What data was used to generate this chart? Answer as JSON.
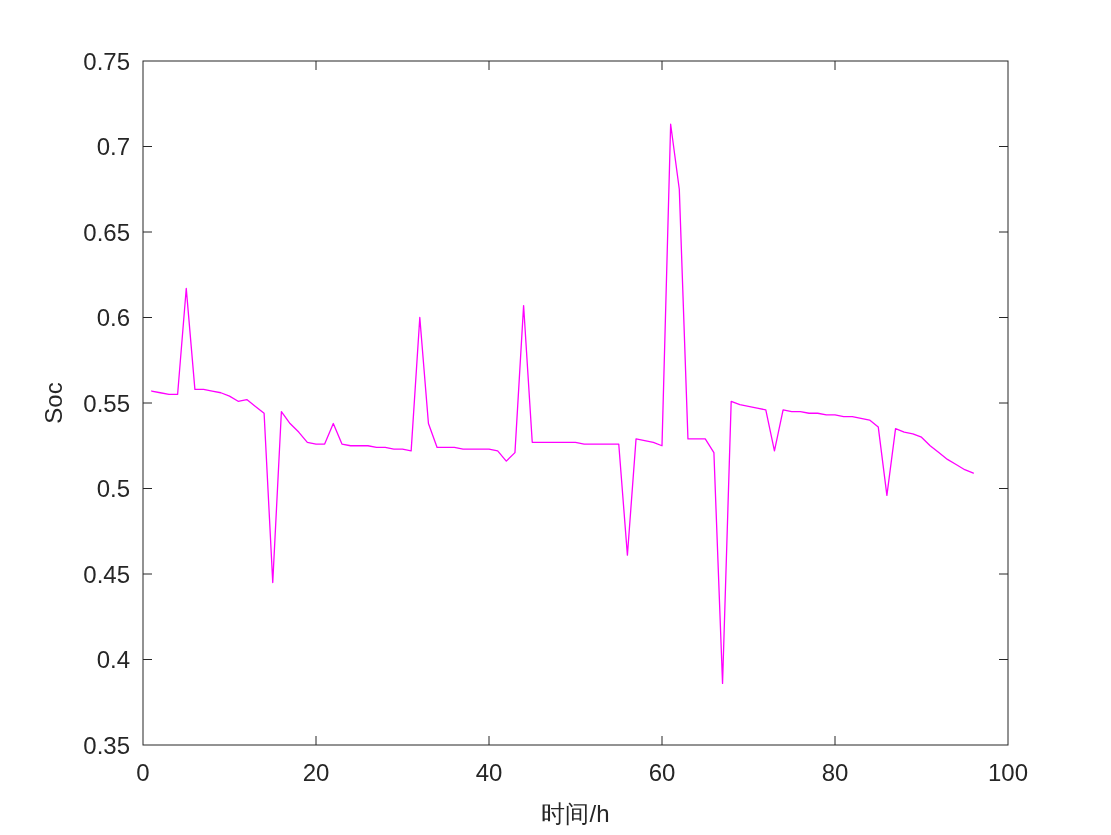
{
  "chart_data": {
    "type": "line",
    "xlabel": "时间/h",
    "ylabel": "Soc",
    "color": "#ff00ff",
    "x": [
      1,
      2,
      3,
      4,
      5,
      6,
      7,
      8,
      9,
      10,
      11,
      12,
      13,
      14,
      15,
      16,
      17,
      18,
      19,
      20,
      21,
      22,
      23,
      24,
      25,
      26,
      27,
      28,
      29,
      30,
      31,
      32,
      33,
      34,
      35,
      36,
      37,
      38,
      39,
      40,
      41,
      42,
      43,
      44,
      45,
      46,
      47,
      48,
      49,
      50,
      51,
      52,
      53,
      54,
      55,
      56,
      57,
      58,
      59,
      60,
      61,
      62,
      63,
      64,
      65,
      66,
      67,
      68,
      69,
      70,
      71,
      72,
      73,
      74,
      75,
      76,
      77,
      78,
      79,
      80,
      81,
      82,
      83,
      84,
      85,
      86,
      87,
      88,
      89,
      90,
      91,
      92,
      93,
      94,
      95,
      96
    ],
    "values": [
      0.557,
      0.556,
      0.555,
      0.555,
      0.617,
      0.558,
      0.558,
      0.557,
      0.556,
      0.554,
      0.551,
      0.552,
      0.548,
      0.544,
      0.445,
      0.545,
      0.538,
      0.533,
      0.527,
      0.526,
      0.526,
      0.538,
      0.526,
      0.525,
      0.525,
      0.525,
      0.524,
      0.524,
      0.523,
      0.523,
      0.522,
      0.6,
      0.538,
      0.524,
      0.524,
      0.524,
      0.523,
      0.523,
      0.523,
      0.523,
      0.522,
      0.516,
      0.521,
      0.607,
      0.527,
      0.527,
      0.527,
      0.527,
      0.527,
      0.527,
      0.526,
      0.526,
      0.526,
      0.526,
      0.526,
      0.461,
      0.529,
      0.528,
      0.527,
      0.525,
      0.713,
      0.675,
      0.529,
      0.529,
      0.529,
      0.521,
      0.386,
      0.551,
      0.549,
      0.548,
      0.547,
      0.546,
      0.522,
      0.546,
      0.545,
      0.545,
      0.544,
      0.544,
      0.543,
      0.543,
      0.542,
      0.542,
      0.541,
      0.54,
      0.536,
      0.496,
      0.535,
      0.533,
      0.532,
      0.53,
      0.525,
      0.521,
      0.517,
      0.514,
      0.511,
      0.509
    ],
    "xlim": [
      0,
      100
    ],
    "ylim": [
      0.35,
      0.75
    ],
    "xticks": [
      0,
      20,
      40,
      60,
      80,
      100
    ],
    "yticks": [
      0.35,
      0.4,
      0.45,
      0.5,
      0.55,
      0.6,
      0.65,
      0.7,
      0.75
    ]
  }
}
